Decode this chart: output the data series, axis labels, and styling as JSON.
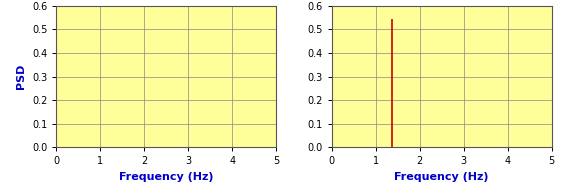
{
  "background_color": "#FFFF99",
  "fig_background_color": "#FFFFFF",
  "grid_color": "#888888",
  "xlim": [
    0,
    5
  ],
  "ylim": [
    0,
    0.6
  ],
  "xticks": [
    0,
    1,
    2,
    3,
    4,
    5
  ],
  "yticks": [
    0,
    0.1,
    0.2,
    0.3,
    0.4,
    0.5,
    0.6
  ],
  "xlabel": "Frequency (Hz)",
  "ylabel": "PSD",
  "xlabel_color": "#0000CC",
  "ylabel_color": "#0000CC",
  "spike_freq": 1.38,
  "spike_psd": 0.545,
  "spike_color": "#CC0000",
  "spike_linewidth": 1.2,
  "tick_fontsize": 7,
  "label_fontsize": 8,
  "spine_color": "#555555",
  "figsize": [
    5.63,
    1.89
  ],
  "dpi": 100
}
